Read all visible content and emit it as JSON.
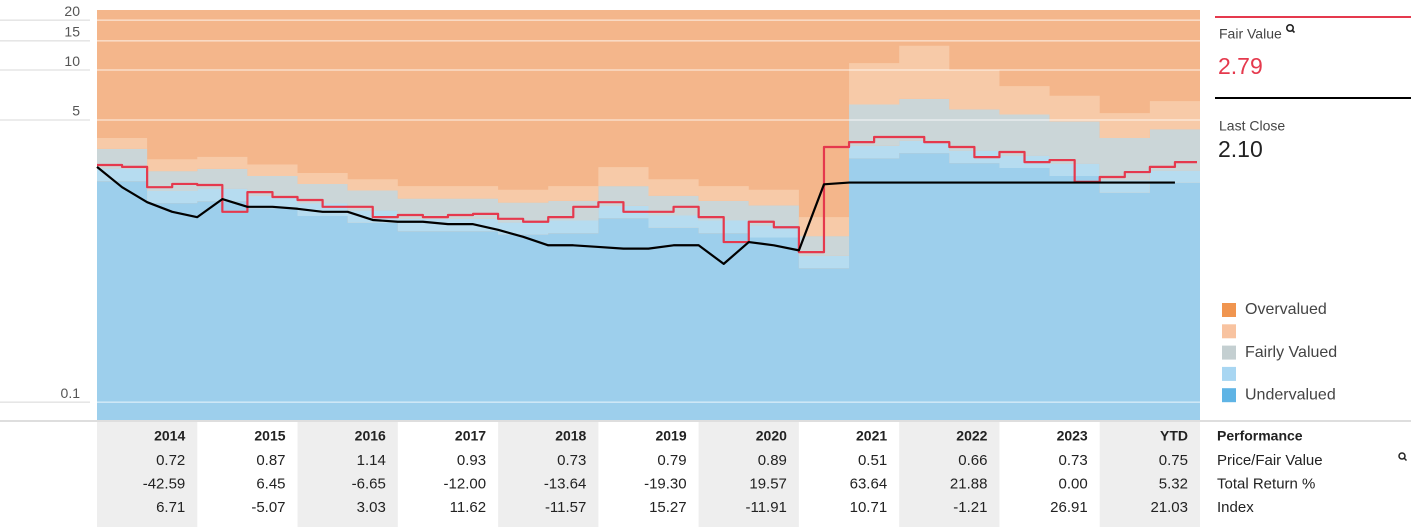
{
  "chart_data": {
    "type": "line",
    "ylog": true,
    "ylim": [
      0.078,
      23
    ],
    "yticks": [
      0.1,
      5,
      10,
      15,
      20
    ],
    "xlim": [
      2014,
      2025
    ],
    "grid": true,
    "x": [
      2014,
      2014.25,
      2014.5,
      2014.75,
      2015,
      2015.25,
      2015.5,
      2015.75,
      2016,
      2016.25,
      2016.5,
      2016.75,
      2017,
      2017.25,
      2017.5,
      2017.75,
      2018,
      2018.25,
      2018.5,
      2018.75,
      2019,
      2019.25,
      2019.5,
      2019.75,
      2020,
      2020.25,
      2020.5,
      2020.75,
      2021,
      2021.25,
      2021.5,
      2021.75,
      2022,
      2022.25,
      2022.5,
      2022.75,
      2023,
      2023.25,
      2023.5,
      2023.75,
      2024,
      2024.25,
      2024.5,
      2024.75
    ],
    "series": [
      {
        "name": "Fair Value",
        "color": "#e5394d",
        "shape": "step",
        "values": [
          2.68,
          2.61,
          1.97,
          2.06,
          2.03,
          1.4,
          1.84,
          1.72,
          1.65,
          1.5,
          1.5,
          1.3,
          1.34,
          1.3,
          1.34,
          1.36,
          1.27,
          1.22,
          1.3,
          1.5,
          1.6,
          1.4,
          1.4,
          1.5,
          1.3,
          0.92,
          1.22,
          1.13,
          0.8,
          3.44,
          3.68,
          3.95,
          3.95,
          3.68,
          3.44,
          2.99,
          3.21,
          2.79,
          2.87,
          2.12,
          2.27,
          2.43,
          2.61,
          2.79
        ]
      },
      {
        "name": "Last Close",
        "color": "#000000",
        "shape": "linear",
        "values": [
          2.61,
          1.97,
          1.6,
          1.4,
          1.3,
          1.67,
          1.5,
          1.5,
          1.46,
          1.4,
          1.4,
          1.25,
          1.22,
          1.22,
          1.18,
          1.18,
          1.09,
          0.99,
          0.88,
          0.88,
          0.86,
          0.84,
          0.84,
          0.88,
          0.88,
          0.68,
          0.92,
          0.88,
          0.82,
          2.05,
          2.1,
          2.1,
          2.1,
          2.1,
          2.1,
          2.1,
          2.1,
          2.1,
          2.1,
          2.1,
          2.1,
          2.1,
          2.1,
          2.1
        ]
      }
    ],
    "summary": {
      "fair_value": "2.79",
      "last_close": "2.10"
    },
    "bands": {
      "x": [
        2014,
        2014.5,
        2015,
        2015.5,
        2016,
        2016.5,
        2017,
        2017.5,
        2018,
        2018.5,
        2019,
        2019.5,
        2020,
        2020.5,
        2021,
        2021.5,
        2022,
        2022.5,
        2023,
        2023.5,
        2024,
        2024.5
      ],
      "top_color": "#f4b68b",
      "tops": [
        {
          "color": "#9dcfec",
          "values": [
            2.14,
            1.58,
            1.62,
            1.47,
            1.32,
            1.2,
            1.07,
            1.07,
            1.02,
            1.04,
            1.28,
            1.12,
            1.04,
            0.98,
            0.64,
            2.94,
            3.16,
            2.75,
            2.57,
            2.3,
            1.82,
            2.09
          ]
        },
        {
          "color": "#b6dcf0",
          "values": [
            2.55,
            1.87,
            1.93,
            1.75,
            1.57,
            1.43,
            1.27,
            1.27,
            1.21,
            1.24,
            1.52,
            1.33,
            1.24,
            1.16,
            0.76,
            3.5,
            3.75,
            3.27,
            3.05,
            2.73,
            2.16,
            2.48
          ]
        },
        {
          "color": "#cbd6d8",
          "values": [
            3.35,
            2.46,
            2.54,
            2.3,
            2.06,
            1.88,
            1.68,
            1.68,
            1.59,
            1.63,
            2.0,
            1.75,
            1.63,
            1.53,
            1.0,
            6.2,
            6.7,
            5.8,
            5.4,
            4.9,
            3.9,
            4.4
          ]
        },
        {
          "color": "#f7caa8",
          "values": [
            3.9,
            2.9,
            3.0,
            2.7,
            2.4,
            2.2,
            2.0,
            2.0,
            1.9,
            2.0,
            2.6,
            2.2,
            2.0,
            1.9,
            1.3,
            11.0,
            14.0,
            10.0,
            8.0,
            7.0,
            5.5,
            6.5
          ]
        }
      ]
    },
    "legend": [
      {
        "label": "Overvalued",
        "color": "#f0954f"
      },
      {
        "label": null,
        "color": "#f8c3a0"
      },
      {
        "label": "Fairly Valued",
        "color": "#c4cfd1"
      },
      {
        "label": null,
        "color": "#a8d6f2"
      },
      {
        "label": "Undervalued",
        "color": "#5fb4e5"
      }
    ]
  },
  "table": {
    "row_header": "Performance",
    "header": [
      "2014",
      "2015",
      "2016",
      "2017",
      "2018",
      "2019",
      "2020",
      "2021",
      "2022",
      "2023",
      "YTD"
    ],
    "rows": [
      {
        "label": "Price/Fair Value",
        "cells": [
          "0.72",
          "0.87",
          "1.14",
          "0.93",
          "0.73",
          "0.79",
          "0.89",
          "0.51",
          "0.66",
          "0.73",
          "0.75"
        ]
      },
      {
        "label": "Total Return %",
        "cells": [
          "-42.59",
          "6.45",
          "-6.65",
          "-12.00",
          "-13.64",
          "-19.30",
          "19.57",
          "63.64",
          "21.88",
          "0.00",
          "5.32"
        ]
      },
      {
        "label": "Index",
        "cells": [
          "6.71",
          "-5.07",
          "3.03",
          "11.62",
          "-11.57",
          "15.27",
          "-11.91",
          "10.71",
          "-1.21",
          "26.91",
          "21.03"
        ]
      }
    ]
  }
}
